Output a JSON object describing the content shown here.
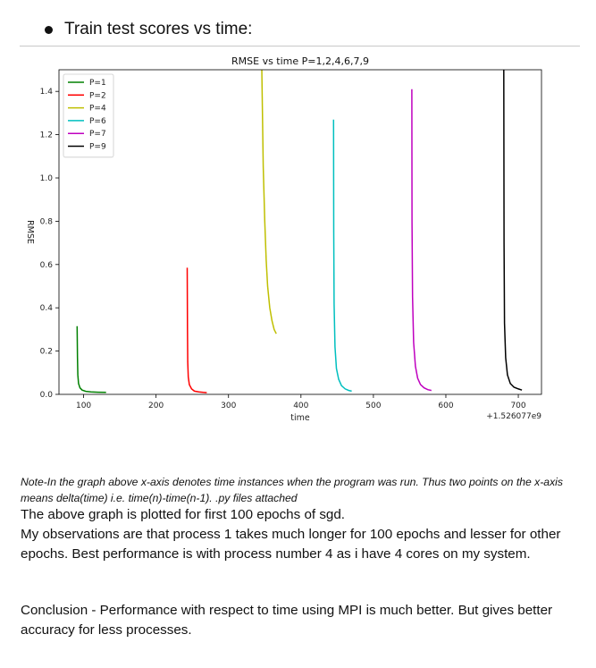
{
  "heading": {
    "bullet_text": "Train test scores vs time:"
  },
  "chart_data": {
    "type": "line",
    "title": "RMSE vs time P=1,2,4,6,7,9",
    "xlabel": "time",
    "ylabel": "RMSE",
    "x_offset_label": "+1.526077e9",
    "xlim": [
      66,
      732
    ],
    "ylim": [
      0,
      1.5
    ],
    "x_ticks": [
      100,
      200,
      300,
      400,
      500,
      600,
      700
    ],
    "y_ticks": [
      0.0,
      0.2,
      0.4,
      0.6,
      0.8,
      1.0,
      1.2,
      1.4
    ],
    "x_tick_labels": [
      "100",
      "200",
      "300",
      "400",
      "500",
      "600",
      "700"
    ],
    "y_tick_labels": [
      "0.0",
      "0.2",
      "0.4",
      "0.6",
      "0.8",
      "1.0",
      "1.2",
      "1.4"
    ],
    "grid": false,
    "legend_position": "top-left",
    "series": [
      {
        "name": "P=1",
        "color": "#008000",
        "x": [
          91,
          91.5,
          92,
          93,
          95,
          98,
          103,
          110,
          120,
          131
        ],
        "y": [
          0.315,
          0.17,
          0.09,
          0.05,
          0.03,
          0.02,
          0.014,
          0.011,
          0.01,
          0.009
        ]
      },
      {
        "name": "P=2",
        "color": "#ff0000",
        "x": [
          243,
          243.3,
          243.7,
          244.5,
          246,
          249,
          253,
          259,
          265,
          270
        ],
        "y": [
          0.585,
          0.3,
          0.15,
          0.08,
          0.045,
          0.025,
          0.015,
          0.011,
          0.009,
          0.008
        ]
      },
      {
        "name": "P=4",
        "color": "#bfbf00",
        "x": [
          346,
          348,
          350,
          352,
          354,
          357,
          360,
          363,
          366
        ],
        "y": [
          1.5,
          1.05,
          0.8,
          0.62,
          0.5,
          0.4,
          0.34,
          0.3,
          0.28
        ]
      },
      {
        "name": "P=6",
        "color": "#00bfbf",
        "x": [
          445,
          445.3,
          445.8,
          447,
          449,
          452,
          456,
          461,
          466,
          470
        ],
        "y": [
          1.27,
          0.75,
          0.42,
          0.22,
          0.12,
          0.07,
          0.04,
          0.025,
          0.018,
          0.015
        ]
      },
      {
        "name": "P=7",
        "color": "#bf00bf",
        "x": [
          553,
          553.3,
          554,
          555.5,
          558,
          561,
          565,
          570,
          575,
          580
        ],
        "y": [
          1.41,
          0.8,
          0.45,
          0.24,
          0.13,
          0.075,
          0.045,
          0.03,
          0.022,
          0.018
        ]
      },
      {
        "name": "P=9",
        "color": "#000000",
        "x": [
          680,
          680.3,
          681,
          682.5,
          685,
          689,
          694,
          700,
          705
        ],
        "y": [
          1.5,
          0.7,
          0.33,
          0.17,
          0.09,
          0.05,
          0.033,
          0.025,
          0.02
        ]
      }
    ]
  },
  "note_text": "Note-In the graph above x-axis denotes time instances when the program was run. Thus two points on the x-axis means delta(time) i.e. time(n)-time(n-1). .py files attached",
  "para1": "The above graph is plotted for first 100 epochs of sgd.",
  "para2": "My observations are that process 1 takes much longer for 100 epochs and lesser for other epochs. Best performance is with process number 4 as i have 4 cores on my system.",
  "para3": "Conclusion  - Performance with respect to time using MPI is much better. But gives better accuracy for less processes."
}
